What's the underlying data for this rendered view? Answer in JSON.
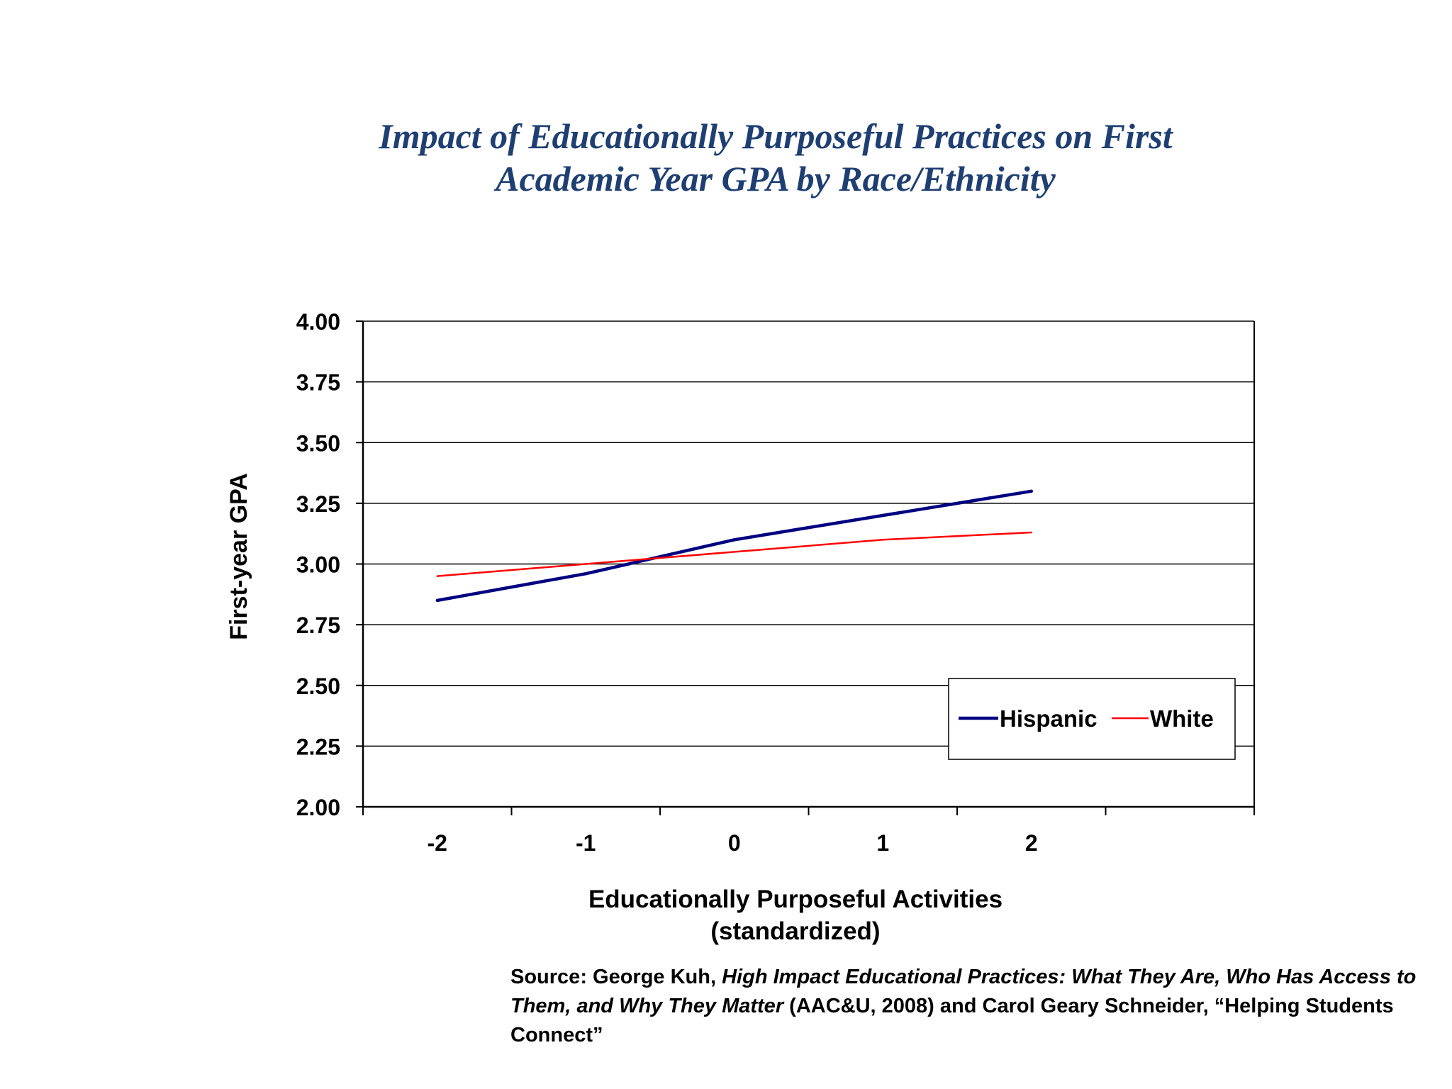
{
  "slide_title": {
    "line1": "Impact of Educationally Purposeful Practices on First",
    "line2": "Academic Year GPA by Race/Ethnicity"
  },
  "chart_data": {
    "type": "line",
    "title": "Impact of Educationally Purposeful Practices on First Academic Year GPA by Race/Ethnicity",
    "xlabel_line1": "Educationally Purposeful Activities",
    "xlabel_line2": "(standardized)",
    "ylabel": "First-year GPA",
    "x": [
      -2,
      -1,
      0,
      1,
      2
    ],
    "x_tick_labels": [
      "-2",
      "-1",
      "0",
      "1",
      "2"
    ],
    "xlim": [
      -2.5,
      3.5
    ],
    "ylim": [
      2.0,
      4.0
    ],
    "y_ticks": [
      2.0,
      2.25,
      2.5,
      2.75,
      3.0,
      3.25,
      3.5,
      3.75,
      4.0
    ],
    "y_tick_labels": [
      "2.00",
      "2.25",
      "2.50",
      "2.75",
      "3.00",
      "3.25",
      "3.50",
      "3.75",
      "4.00"
    ],
    "grid": true,
    "legend_position": "bottom-right",
    "series": [
      {
        "name": "Hispanic",
        "color": "#000080",
        "values": [
          2.85,
          2.96,
          3.1,
          3.2,
          3.3
        ]
      },
      {
        "name": "White",
        "color": "#ff0000",
        "values": [
          2.95,
          3.0,
          3.05,
          3.1,
          3.13
        ]
      }
    ]
  },
  "source": {
    "prefix": "Source: George Kuh, ",
    "book_title": "High Impact Educational Practices: What They Are, Who Has Access to Them, and Why They Matter",
    "suffix": " (AAC&U, 2008) and Carol Geary Schneider, “Helping Students Connect”"
  },
  "colors": {
    "title": "#1f3f73",
    "gridline": "#000000",
    "hispanic": "#000080",
    "white": "#ff0000"
  }
}
